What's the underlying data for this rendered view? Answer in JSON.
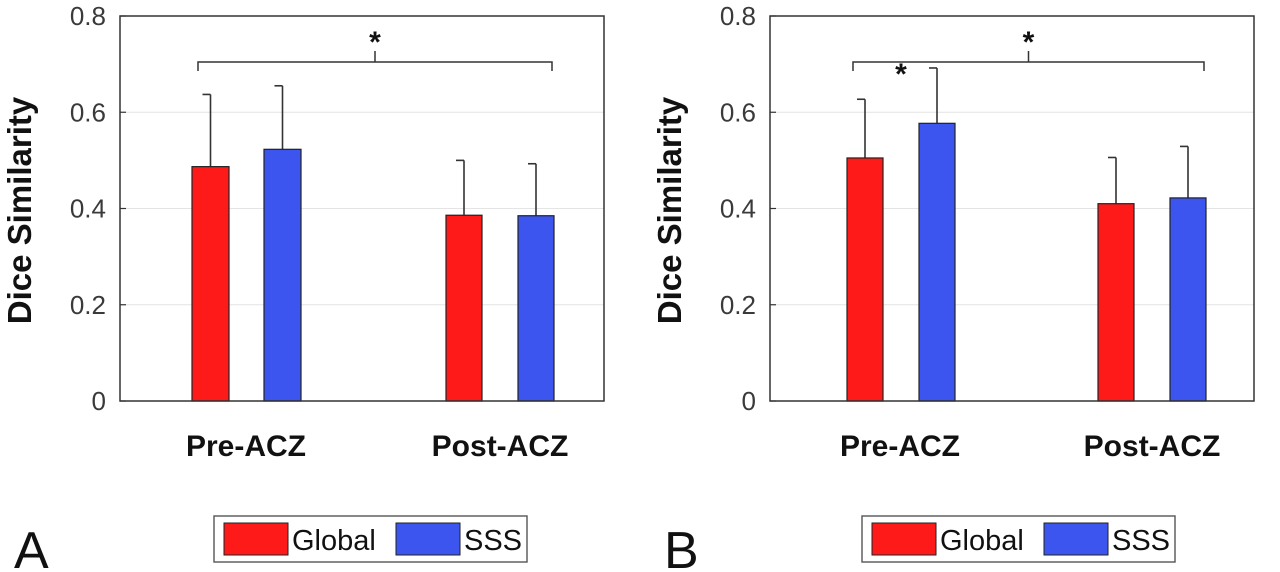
{
  "chart_data": [
    {
      "panel_label": "A",
      "type": "bar",
      "ylabel": "Dice Similarity",
      "ylim": [
        0,
        0.8
      ],
      "yticks": [
        "0",
        "0.2",
        "0.4",
        "0.6",
        "0.8"
      ],
      "grid": true,
      "categories": [
        "Pre-ACZ",
        "Post-ACZ"
      ],
      "series": [
        {
          "name": "Global",
          "color": "#ff1a1a",
          "values": [
            0.487,
            0.386
          ],
          "error": [
            0.15,
            0.114
          ]
        },
        {
          "name": "SSS",
          "color": "#3b55ee",
          "values": [
            0.523,
            0.385
          ],
          "error": [
            0.132,
            0.108
          ]
        }
      ],
      "annotations": [
        {
          "text": "*",
          "type": "bracket",
          "from": "Pre-ACZ",
          "to": "Post-ACZ"
        }
      ],
      "legend": "bottom"
    },
    {
      "panel_label": "B",
      "type": "bar",
      "ylabel": "Dice Similarity",
      "ylim": [
        0,
        0.8
      ],
      "yticks": [
        "0",
        "0.2",
        "0.4",
        "0.6",
        "0.8"
      ],
      "grid": true,
      "categories": [
        "Pre-ACZ",
        "Post-ACZ"
      ],
      "series": [
        {
          "name": "Global",
          "color": "#ff1a1a",
          "values": [
            0.505,
            0.41
          ],
          "error": [
            0.122,
            0.096
          ]
        },
        {
          "name": "SSS",
          "color": "#3b55ee",
          "values": [
            0.577,
            0.422
          ],
          "error": [
            0.115,
            0.107
          ]
        }
      ],
      "annotations": [
        {
          "text": "*",
          "type": "bracket",
          "from": "Pre-ACZ",
          "to": "Post-ACZ"
        },
        {
          "text": "*",
          "type": "star",
          "category": "Pre-ACZ"
        }
      ],
      "legend": "bottom"
    }
  ]
}
